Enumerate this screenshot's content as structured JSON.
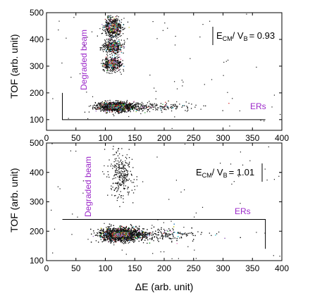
{
  "chart_data": [
    {
      "type": "scatter",
      "panel": "top",
      "xlim": [
        0,
        400
      ],
      "ylim": [
        60,
        500
      ],
      "xticks": [
        0,
        50,
        100,
        150,
        200,
        250,
        300,
        350,
        400
      ],
      "yticks": [
        100,
        200,
        300,
        400,
        500
      ],
      "ylabel": "TOF (arb. unit)",
      "xlabel": "",
      "annotation": {
        "E": "E",
        "E_sub": "CM",
        "V": "/ V",
        "V_sub": "B",
        "value": "= 0.93"
      },
      "region_labels": {
        "degraded": "Degraded beam",
        "ers": "ERs"
      },
      "gate_box": {
        "x": [
          27,
          372
        ],
        "y": [
          100,
          200
        ]
      },
      "clusters": [
        {
          "name": "ER band",
          "x_center": 118,
          "x_spread": 28,
          "x_tail": 260,
          "y_center": 150,
          "y_spread": 14,
          "count": 1400,
          "colors": "mixed"
        },
        {
          "name": "degraded-1",
          "x_center": 112,
          "x_spread": 14,
          "y_center": 445,
          "y_spread": 30,
          "count": 520,
          "colors": "mixed"
        },
        {
          "name": "degraded-2",
          "x_center": 112,
          "x_spread": 14,
          "y_center": 375,
          "y_spread": 18,
          "count": 420,
          "colors": "mixed"
        },
        {
          "name": "degraded-3",
          "x_center": 112,
          "x_spread": 14,
          "y_center": 310,
          "y_spread": 22,
          "count": 420,
          "colors": "mixed"
        }
      ]
    },
    {
      "type": "scatter",
      "panel": "bottom",
      "xlim": [
        0,
        400
      ],
      "ylim": [
        100,
        500
      ],
      "xticks": [
        0,
        50,
        100,
        150,
        200,
        250,
        300,
        350,
        400
      ],
      "yticks": [
        100,
        200,
        300,
        400,
        500
      ],
      "ylabel": "TOF (arb. unit)",
      "xlabel": "ΔE (arb. unit)",
      "annotation": {
        "E": "E",
        "E_sub": "CM",
        "V": "/ V",
        "V_sub": "B",
        "value": "= 1.01"
      },
      "region_labels": {
        "degraded": "Degraded beam",
        "ers": "ERs"
      },
      "gate_box": {
        "x": [
          27,
          372
        ],
        "y": [
          140,
          240
        ]
      },
      "clusters": [
        {
          "name": "ER band",
          "x_center": 125,
          "x_spread": 30,
          "x_tail": 270,
          "y_center": 190,
          "y_spread": 18,
          "count": 2600,
          "colors": "mixed"
        },
        {
          "name": "degraded",
          "x_center": 125,
          "x_spread": 18,
          "y_center": 390,
          "y_spread": 60,
          "count": 260,
          "colors": "black"
        }
      ]
    }
  ],
  "colors": {
    "axis": "#000000",
    "points_dark": "#111111",
    "points_mixed": [
      "#111111",
      "#111111",
      "#8b1a1a",
      "#d62728",
      "#2ca02c",
      "#1f77b4",
      "#e377c2",
      "#17becf",
      "#bcbd22",
      "#9467bd"
    ],
    "label": "#9b27c9"
  }
}
